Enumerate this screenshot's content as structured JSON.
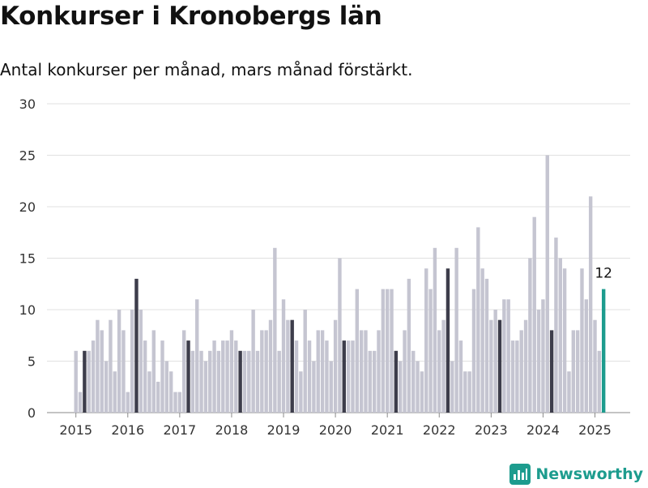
{
  "colors": {
    "bar_regular": "#c5c5d1",
    "bar_march": "#3d3d4b",
    "bar_latest": "#1d9c8e",
    "grid": "#e0e0e0",
    "axis_text": "#333333",
    "brand": "#1d9c8e"
  },
  "brand": {
    "name": "Newsworthy",
    "icon": "bar-chart-logo-icon"
  },
  "chart_data": {
    "type": "bar",
    "title": "Konkurser i Kronobergs län",
    "subtitle": "Antal konkurser per månad, mars månad förstärkt.",
    "x_tick_labels": [
      "2015",
      "2016",
      "2017",
      "2018",
      "2019",
      "2020",
      "2021",
      "2022",
      "2023",
      "2024",
      "2025"
    ],
    "y_ticks": [
      0,
      5,
      10,
      15,
      20,
      25,
      30
    ],
    "ylim": [
      0,
      30
    ],
    "grid": true,
    "start": "2015-01",
    "end": "2025-03",
    "highlight": "March of each year",
    "annotation": {
      "month": "2025-03",
      "label": "12"
    },
    "values": [
      6,
      2,
      6,
      6,
      7,
      9,
      8,
      5,
      9,
      4,
      10,
      8,
      2,
      10,
      13,
      10,
      7,
      4,
      8,
      3,
      7,
      5,
      4,
      2,
      2,
      8,
      7,
      6,
      11,
      6,
      5,
      6,
      7,
      6,
      7,
      7,
      8,
      7,
      6,
      6,
      6,
      10,
      6,
      8,
      8,
      9,
      16,
      6,
      11,
      9,
      9,
      7,
      4,
      10,
      7,
      5,
      8,
      8,
      7,
      5,
      9,
      15,
      7,
      7,
      7,
      12,
      8,
      8,
      6,
      6,
      8,
      12,
      12,
      12,
      6,
      5,
      8,
      13,
      6,
      5,
      4,
      14,
      12,
      16,
      8,
      9,
      14,
      5,
      16,
      7,
      4,
      4,
      12,
      18,
      14,
      13,
      9,
      10,
      9,
      11,
      11,
      7,
      7,
      8,
      9,
      15,
      19,
      10,
      11,
      25,
      8,
      17,
      15,
      14,
      4,
      8,
      8,
      14,
      11,
      21,
      9,
      6,
      12
    ]
  }
}
